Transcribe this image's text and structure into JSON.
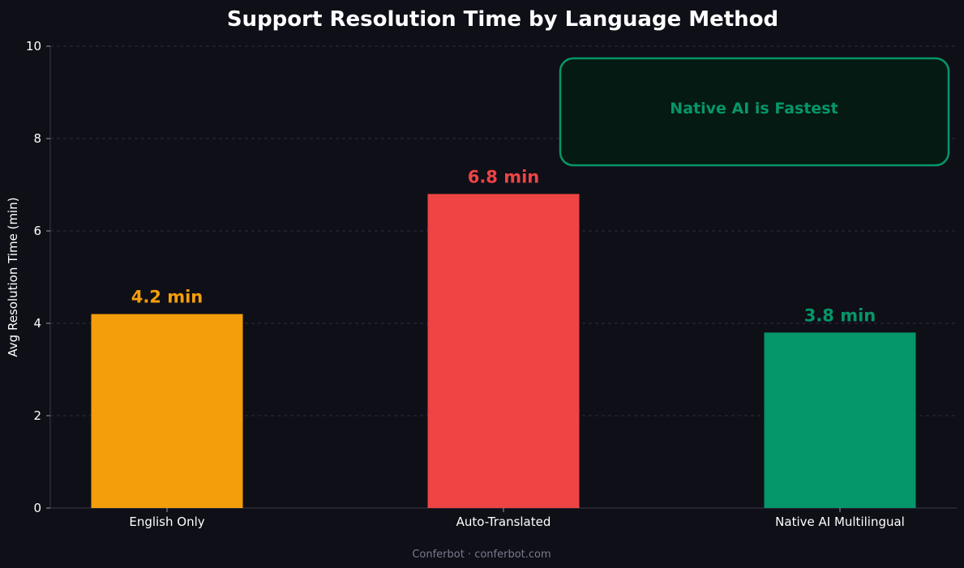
{
  "chart_data": {
    "type": "bar",
    "title": "Support Resolution Time by Language Method",
    "xlabel": "",
    "ylabel": "Avg Resolution Time (min)",
    "categories": [
      "English Only",
      "Auto-Translated",
      "Native AI Multilingual"
    ],
    "values": [
      4.2,
      6.8,
      3.8
    ],
    "data_labels": [
      "4.2 min",
      "6.8 min",
      "3.8 min"
    ],
    "colors": [
      "#f59e0b",
      "#ef4444",
      "#059669"
    ],
    "ylim": [
      0,
      10
    ],
    "yticks": [
      0,
      2,
      4,
      6,
      8,
      10
    ],
    "grid": true,
    "annotation": {
      "text": "Native AI is Fastest",
      "text_color": "#059669",
      "border_color": "#059669",
      "fill_color": "#041a12"
    },
    "background_color": "#0f0f18"
  },
  "footer": {
    "text": "Conferbot · conferbot.com"
  }
}
